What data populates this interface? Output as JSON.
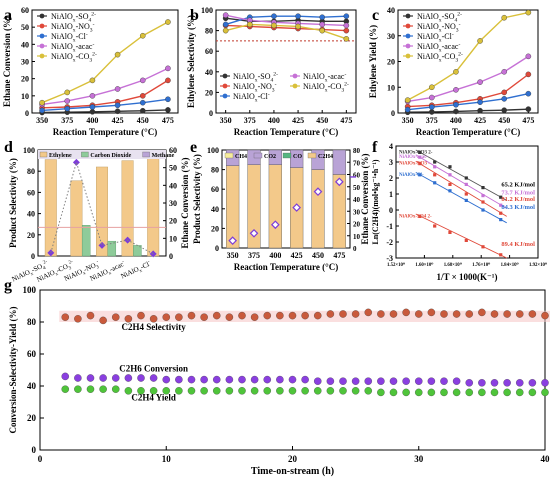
{
  "colors": {
    "black": "#333333",
    "red": "#e0493a",
    "blue": "#2f6fd0",
    "purple": "#c671d6",
    "yellow": "#d9c03a",
    "ethylene_bar": "#f3c98a",
    "co2_bar": "#8ecb9a",
    "methane_bar": "#b9a3d6",
    "diamond": "#7d3dd8",
    "ch4_bar": "#f7ec9c",
    "co_bar": "#56b680",
    "pink_band": "#f6c4c4"
  },
  "panels": {
    "a": {
      "letter": "a"
    },
    "b": {
      "letter": "b"
    },
    "c": {
      "letter": "c"
    },
    "d": {
      "letter": "d"
    },
    "e": {
      "letter": "e"
    },
    "f": {
      "letter": "f"
    },
    "g": {
      "letter": "g"
    }
  },
  "chart_data": [
    {
      "id": "a",
      "type": "line",
      "xlabel": "Reaction Temperature (°C)",
      "ylabel": "Ethane Conversion (%)",
      "x": [
        350,
        375,
        400,
        425,
        450,
        475
      ],
      "ylim": [
        0,
        60
      ],
      "yticks": [
        0,
        10,
        20,
        30,
        40,
        50,
        60
      ],
      "legend_position": "top-left",
      "series": [
        {
          "name": "NiAlOx-SO4 2-",
          "label": "NiAlO",
          "sub": "x",
          "suffix": "-SO",
          "sub2": "4",
          "sup": "2-",
          "color": "#333333",
          "values": [
            0.3,
            0.5,
            0.7,
            1.0,
            1.3,
            1.8
          ]
        },
        {
          "name": "NiAlOx-NO3 -",
          "label": "NiAlO",
          "sub": "x",
          "suffix": "-NO",
          "sub2": "3",
          "sup": "-",
          "color": "#e0493a",
          "values": [
            3,
            3.5,
            4.5,
            6.5,
            10,
            19
          ]
        },
        {
          "name": "NiAlOx-Cl-",
          "label": "NiAlO",
          "sub": "x",
          "suffix": "-Cl",
          "sub2": "",
          "sup": "-",
          "color": "#2f6fd0",
          "values": [
            1.5,
            2.5,
            3.5,
            4.5,
            6,
            8
          ]
        },
        {
          "name": "NiAlOx-acac-",
          "label": "NiAlO",
          "sub": "x",
          "suffix": "-acac",
          "sub2": "",
          "sup": "-",
          "color": "#c671d6",
          "values": [
            5,
            7,
            10,
            14,
            19,
            26
          ]
        },
        {
          "name": "NiAlOx-CO3 2-",
          "label": "NiAlO",
          "sub": "x",
          "suffix": "-CO",
          "sub2": "3",
          "sup": "2-",
          "color": "#d9c03a",
          "values": [
            6,
            12,
            19,
            34,
            45,
            53
          ]
        }
      ]
    },
    {
      "id": "b",
      "type": "line",
      "xlabel": "Reaction Temperature (°C)",
      "ylabel": "Ethylene Selectivity (%)",
      "x": [
        350,
        375,
        400,
        425,
        450,
        475
      ],
      "ylim": [
        0,
        100
      ],
      "yticks": [
        0,
        20,
        40,
        60,
        80,
        100
      ],
      "reference_line": 70,
      "legend_position": "bottom",
      "series": [
        {
          "name": "NiAlOx-SO4 2-",
          "label": "NiAlO",
          "sub": "x",
          "suffix": "-SO",
          "sub2": "4",
          "sup": "2-",
          "color": "#333333",
          "values": [
            92,
            89,
            89,
            90,
            89,
            89
          ]
        },
        {
          "name": "NiAlOx-NO3 -",
          "label": "NiAlO",
          "sub": "x",
          "suffix": "-NO",
          "sub2": "3",
          "sup": "-",
          "color": "#e0493a",
          "values": [
            85,
            84,
            83,
            82,
            81,
            80
          ]
        },
        {
          "name": "NiAlOx-Cl-",
          "label": "NiAlO",
          "sub": "x",
          "suffix": "-Cl",
          "sub2": "",
          "sup": "-",
          "color": "#2f6fd0",
          "values": [
            86,
            93,
            94,
            94,
            93,
            94
          ]
        },
        {
          "name": "NiAlOx-acac-",
          "label": "NiAlO",
          "sub": "x",
          "suffix": "-acac",
          "sub2": "",
          "sup": "-",
          "color": "#c671d6",
          "values": [
            95,
            90,
            88,
            87,
            86,
            85
          ]
        },
        {
          "name": "NiAlOx-CO3 2-",
          "label": "NiAlO",
          "sub": "x",
          "suffix": "-CO",
          "sub2": "3",
          "sup": "2-",
          "color": "#d9c03a",
          "values": [
            80,
            86,
            85,
            84,
            80,
            72
          ]
        }
      ]
    },
    {
      "id": "c",
      "type": "line",
      "xlabel": "Reaction Temperature (°C)",
      "ylabel": "Ethylene Yield (%)",
      "x": [
        350,
        375,
        400,
        425,
        450,
        475
      ],
      "ylim": [
        0,
        40
      ],
      "yticks": [
        0,
        10,
        20,
        30,
        40
      ],
      "legend_position": "top-left",
      "series": [
        {
          "name": "NiAlOx-SO4 2-",
          "label": "NiAlO",
          "sub": "x",
          "suffix": "-SO",
          "sub2": "4",
          "sup": "2-",
          "color": "#333333",
          "values": [
            0.3,
            0.4,
            0.6,
            0.9,
            1.1,
            1.5
          ]
        },
        {
          "name": "NiAlOx-NO3 -",
          "label": "NiAlO",
          "sub": "x",
          "suffix": "-NO",
          "sub2": "3",
          "sup": "-",
          "color": "#e0493a",
          "values": [
            2.5,
            3,
            4,
            5.5,
            8,
            15
          ]
        },
        {
          "name": "NiAlOx-Cl-",
          "label": "NiAlO",
          "sub": "x",
          "suffix": "-Cl",
          "sub2": "",
          "sup": "-",
          "color": "#2f6fd0",
          "values": [
            1.3,
            2.3,
            3.2,
            4.2,
            5.5,
            7.5
          ]
        },
        {
          "name": "NiAlOx-acac-",
          "label": "NiAlO",
          "sub": "x",
          "suffix": "-acac",
          "sub2": "",
          "sup": "-",
          "color": "#c671d6",
          "values": [
            4.5,
            6,
            9,
            12,
            16,
            22
          ]
        },
        {
          "name": "NiAlOx-CO3 2-",
          "label": "NiAlO",
          "sub": "x",
          "suffix": "-CO",
          "sub2": "3",
          "sup": "2-",
          "color": "#d9c03a",
          "values": [
            5,
            10,
            16,
            28,
            37,
            39
          ]
        }
      ]
    },
    {
      "id": "d",
      "type": "bar",
      "ylabel": "Product Selectivity (%)",
      "y2label": "Ethane Conversion (%)",
      "ylim": [
        0,
        100
      ],
      "yticks": [
        0,
        20,
        40,
        60,
        80,
        100
      ],
      "y2lim": [
        0,
        60
      ],
      "y2ticks": [
        0,
        10,
        20,
        30,
        40,
        50,
        60
      ],
      "legend": [
        "Ethylene",
        "Carbon Dioxide",
        "Methane"
      ],
      "categories": [
        "NiAlOx-SO4 2-",
        "NiAlOx-CO3 2-",
        "NiAlOx-NO3 -",
        "NiAlOx-acac-",
        "NiAlOx-Cl-"
      ],
      "category_labels": [
        {
          "main": "NiAlO",
          "sub": "x",
          "suffix": "-SO",
          "sub2": "4",
          "sup": "2-"
        },
        {
          "main": "NiAlO",
          "sub": "x",
          "suffix": "-CO",
          "sub2": "3",
          "sup": "2-"
        },
        {
          "main": "NiAlO",
          "sub": "x",
          "suffix": "-NO",
          "sub2": "3",
          "sup": "-"
        },
        {
          "main": "NiAlO",
          "sub": "x",
          "suffix": "-acac",
          "sub2": "",
          "sup": "-"
        },
        {
          "main": "NiAlO",
          "sub": "x",
          "suffix": "-Cl",
          "sub2": "",
          "sup": "-"
        }
      ],
      "series": [
        {
          "name": "Ethylene",
          "values": [
            91,
            71,
            84,
            90,
            93
          ]
        },
        {
          "name": "Carbon Dioxide",
          "values": [
            0,
            29,
            14,
            10,
            0
          ]
        },
        {
          "name": "Methane",
          "values": [
            0,
            0,
            0,
            0,
            0
          ]
        }
      ],
      "ethane_conversion": [
        1.8,
        53,
        6,
        9,
        1.2
      ]
    },
    {
      "id": "e",
      "type": "bar",
      "xlabel": "Reaction Temperature (°C)",
      "ylabel": "Product Selectivity (%)",
      "y2label": "Ethane Conversion (%)",
      "categories": [
        350,
        375,
        400,
        425,
        450,
        475
      ],
      "ylim": [
        0,
        100
      ],
      "yticks": [
        0,
        20,
        40,
        60,
        80,
        100
      ],
      "y2lim": [
        0,
        80
      ],
      "y2ticks": [
        0,
        10,
        20,
        30,
        40,
        50,
        60,
        70,
        80
      ],
      "legend": [
        "CH4",
        "CO2",
        "CO",
        "C2H4"
      ],
      "series": [
        {
          "name": "C2H4",
          "values": [
            84,
            85,
            85,
            82,
            80,
            75
          ]
        },
        {
          "name": "CO",
          "values": [
            0,
            0,
            0,
            0,
            0,
            0
          ]
        },
        {
          "name": "CO2",
          "values": [
            16,
            15,
            15,
            18,
            20,
            25
          ]
        },
        {
          "name": "CH4",
          "values": [
            0,
            0,
            0,
            0,
            0,
            0
          ]
        }
      ],
      "ethane_conversion": [
        6,
        12,
        19,
        33,
        46,
        54
      ]
    },
    {
      "id": "f",
      "type": "scatter",
      "xlabel": "1/T × 1000(K⁻¹)",
      "ylabel": "Ln(C2H4)(mol•kg⁻¹•h⁻¹)",
      "xlim": [
        1.52,
        1.92
      ],
      "ylim": [
        -3,
        4
      ],
      "yticks": [
        -3,
        -2,
        -1,
        0,
        1,
        2,
        3,
        4
      ],
      "xticks": [
        1.52,
        1.6,
        1.68,
        1.76,
        1.84,
        1.92
      ],
      "xtick_labels": [
        "1.52×10⁰",
        "1.60×10⁰",
        "1.68×10⁰",
        "1.76×10⁰",
        "1.84×10⁰",
        "1.92×10⁰"
      ],
      "x": [
        1.587,
        1.629,
        1.672,
        1.718,
        1.765,
        1.815
      ],
      "series": [
        {
          "label": "NiAlOx-CO3 2-",
          "color": "#333333",
          "energy": "65.2 KJ/mol",
          "values": [
            3.6,
            3.0,
            2.7,
            2.0,
            1.4,
            0.8
          ]
        },
        {
          "label": "NiAlOx-acac-",
          "color": "#c671d6",
          "energy": "73.7 KJ/mol",
          "values": [
            3.3,
            2.7,
            2.2,
            1.6,
            0.9,
            0.3
          ]
        },
        {
          "label": "NiAlOx-NO3 -",
          "color": "#e0493a",
          "energy": "81.2 KJ/mol",
          "values": [
            2.9,
            2.2,
            1.6,
            1.0,
            0.5,
            -0.2
          ]
        },
        {
          "label": "NiAlOx-Cl-",
          "color": "#2f6fd0",
          "energy": "84.3 KJ/mol",
          "values": [
            2.2,
            1.7,
            1.2,
            0.6,
            0.0,
            -0.6
          ]
        },
        {
          "label": "NiAlOx-SO4 2-",
          "color": "#e0493a",
          "energy": "89.4 KJ/mol",
          "values": [
            -0.4,
            -1.0,
            -1.4,
            -1.9,
            -2.3,
            -2.8
          ]
        }
      ]
    },
    {
      "id": "g",
      "type": "scatter",
      "xlabel": "Time-on-stream (h)",
      "ylabel": "Conversion-Selectivity-Yield (%)",
      "xlim": [
        0,
        40
      ],
      "ylim": [
        0,
        100
      ],
      "xticks": [
        0,
        10,
        20,
        30,
        40
      ],
      "yticks": [
        0,
        20,
        40,
        60,
        80,
        100
      ],
      "annotations": [
        "C2H4 Selectivity",
        "C2H6 Conversion",
        "C2H4 Yield"
      ],
      "x": [
        2,
        3,
        4,
        5,
        6,
        7,
        8,
        9,
        10,
        11,
        12,
        13,
        14,
        15,
        16,
        17,
        18,
        19,
        20,
        21,
        22,
        23,
        24,
        25,
        26,
        27,
        28,
        29,
        30,
        31,
        32,
        33,
        34,
        35,
        36,
        37,
        38,
        39,
        40
      ],
      "series": [
        {
          "name": "C2H4 Selectivity",
          "color": "#c95a3c",
          "values": [
            83,
            82,
            84,
            81,
            83,
            82,
            84,
            82,
            83,
            83,
            84,
            83,
            84,
            83,
            84,
            83,
            84,
            84,
            84,
            84,
            84,
            85,
            85,
            85,
            86,
            85,
            85,
            86,
            85,
            86,
            85,
            85,
            85,
            86,
            85,
            85,
            85,
            85,
            84
          ]
        },
        {
          "name": "C2H6 Conversion",
          "color": "#8a3fe0",
          "values": [
            46,
            45,
            45,
            45,
            45,
            45,
            45,
            45,
            44,
            44,
            44,
            44,
            44,
            44,
            44,
            44,
            44,
            44,
            44,
            44,
            43,
            43,
            43,
            43,
            43,
            43,
            43,
            43,
            43,
            43,
            43,
            43,
            42,
            42,
            42,
            42,
            42,
            42,
            42
          ]
        },
        {
          "name": "C2H4 Yield",
          "color": "#4fc43a",
          "values": [
            38,
            38,
            38,
            38,
            38,
            37,
            37,
            37,
            37,
            37,
            37,
            37,
            37,
            37,
            37,
            37,
            37,
            37,
            37,
            37,
            37,
            37,
            37,
            37,
            37,
            36,
            36,
            36,
            36,
            36,
            36,
            36,
            36,
            36,
            36,
            36,
            36,
            36,
            36
          ]
        }
      ]
    }
  ]
}
